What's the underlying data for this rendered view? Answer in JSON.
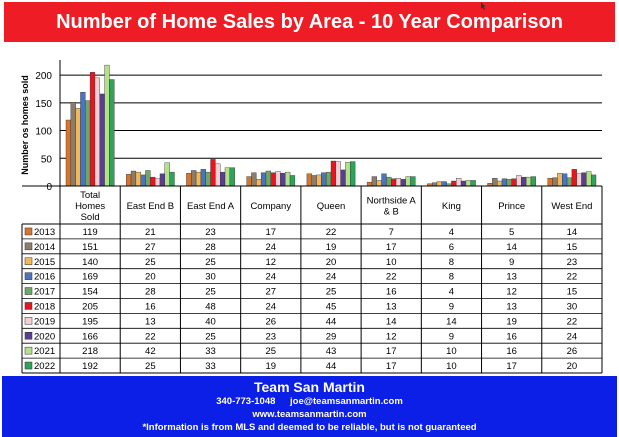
{
  "chart_data": {
    "type": "bar",
    "title": "Number of Home Sales by Area - 10 Year Comparison",
    "ylabel": "Number os homes sold",
    "ylim": [
      0,
      220
    ],
    "yticks": [
      0,
      50,
      100,
      150,
      200
    ],
    "grid": true,
    "categories": [
      "Total Homes Sold",
      "East End B",
      "East End A",
      "Company",
      "Queen",
      "Northside A & B",
      "King",
      "Prince",
      "West End"
    ],
    "series": [
      {
        "name": "2013",
        "color": "#d4762f",
        "values": [
          119,
          21,
          23,
          17,
          22,
          7,
          4,
          5,
          14
        ]
      },
      {
        "name": "2014",
        "color": "#8c7c6a",
        "values": [
          151,
          27,
          28,
          24,
          19,
          17,
          6,
          14,
          15
        ]
      },
      {
        "name": "2015",
        "color": "#f0b85a",
        "values": [
          140,
          25,
          25,
          12,
          20,
          10,
          8,
          9,
          23
        ]
      },
      {
        "name": "2016",
        "color": "#4a74c0",
        "values": [
          169,
          20,
          30,
          24,
          24,
          22,
          8,
          13,
          22
        ]
      },
      {
        "name": "2017",
        "color": "#6fa866",
        "values": [
          154,
          28,
          25,
          27,
          25,
          16,
          4,
          12,
          15
        ]
      },
      {
        "name": "2018",
        "color": "#e8141e",
        "values": [
          205,
          16,
          48,
          24,
          45,
          13,
          9,
          13,
          30
        ]
      },
      {
        "name": "2019",
        "color": "#f4d0d4",
        "values": [
          195,
          13,
          40,
          26,
          44,
          14,
          14,
          19,
          22
        ]
      },
      {
        "name": "2020",
        "color": "#5b3f8f",
        "values": [
          166,
          22,
          25,
          23,
          29,
          12,
          9,
          16,
          24
        ]
      },
      {
        "name": "2021",
        "color": "#b4e08a",
        "values": [
          218,
          42,
          33,
          25,
          43,
          17,
          10,
          16,
          26
        ]
      },
      {
        "name": "2022",
        "color": "#2ea35a",
        "values": [
          192,
          25,
          33,
          19,
          44,
          17,
          10,
          17,
          20
        ]
      }
    ]
  },
  "footer": {
    "team": "Team San Martin",
    "phone": "340-773-1048",
    "email": "joe@teamsanmartin.com",
    "website": "www.teamsanmartin.com",
    "disclaimer": "*Information is from MLS and deemed to be reliable, but is not guaranteed"
  }
}
